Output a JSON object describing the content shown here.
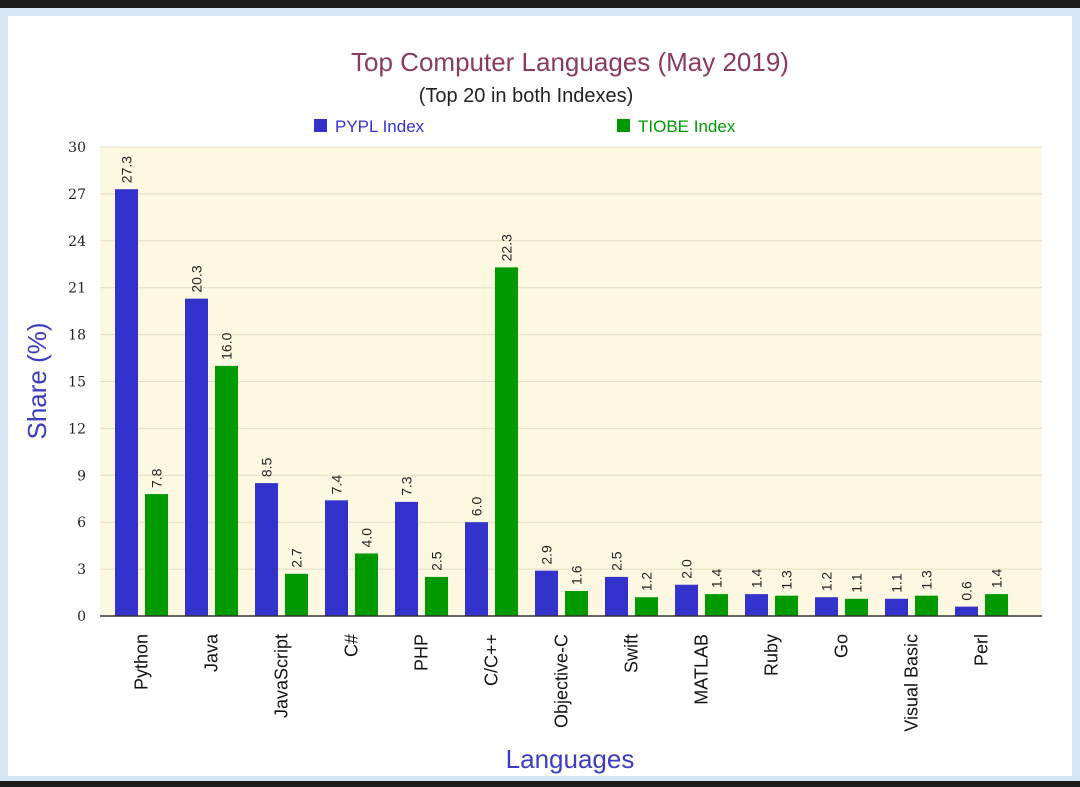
{
  "chart_data": {
    "type": "bar",
    "title": "Top Computer Languages (May 2019)",
    "subtitle": "(Top 20 in both Indexes)",
    "xlabel": "Languages",
    "ylabel": "Share (%)",
    "ylim": [
      0,
      30
    ],
    "yticks": [
      "0",
      "3",
      "6",
      "9",
      "12",
      "15",
      "18",
      "21",
      "24",
      "27",
      "30"
    ],
    "grid": true,
    "legend_position": "top",
    "categories": [
      "Python",
      "Java",
      "JavaScript",
      "C#",
      "PHP",
      "C/C++",
      "Objective-C",
      "Swift",
      "MATLAB",
      "Ruby",
      "Go",
      "Visual Basic",
      "Perl"
    ],
    "series": [
      {
        "name": "PYPL Index",
        "color": "#3333cc",
        "values": [
          27.3,
          20.3,
          8.5,
          7.4,
          7.3,
          6.0,
          2.9,
          2.5,
          2.0,
          1.4,
          1.2,
          1.1,
          0.6
        ],
        "labels": [
          "27.3",
          "20.3",
          "8.5",
          "7.4",
          "7.3",
          "6.0",
          "2.9",
          "2.5",
          "2.0",
          "1.4",
          "1.2",
          "1.1",
          "0.6"
        ]
      },
      {
        "name": "TIOBE Index",
        "color": "#009900",
        "values": [
          7.8,
          16.0,
          2.7,
          4.0,
          2.5,
          22.3,
          1.6,
          1.2,
          1.4,
          1.3,
          1.1,
          1.3,
          1.4
        ],
        "labels": [
          "7.8",
          "16.0",
          "2.7",
          "4.0",
          "2.5",
          "22.3",
          "1.6",
          "1.2",
          "1.4",
          "1.3",
          "1.1",
          "1.3",
          "1.4"
        ]
      }
    ],
    "colors": {
      "plot_background": "#fdf8e1",
      "title": "#8b3a62",
      "axis_title": "#3c3cbf"
    }
  }
}
